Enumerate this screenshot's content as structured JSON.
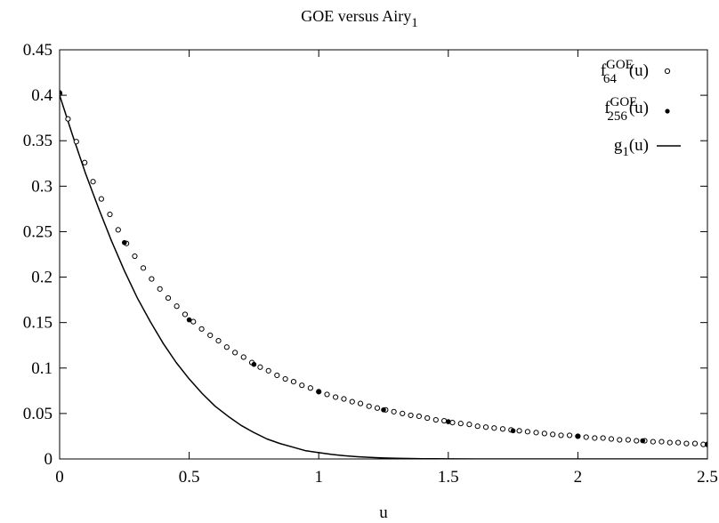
{
  "chart_data": {
    "type": "scatter",
    "title": {
      "main": "GOE versus Airy",
      "sub": "1"
    },
    "xlabel": "u",
    "ylabel": "",
    "xlim": [
      0,
      2.5
    ],
    "ylim": [
      0,
      0.45
    ],
    "xticks": [
      "0",
      "0.5",
      "1",
      "1.5",
      "2",
      "2.5"
    ],
    "yticks": [
      "0",
      "0.05",
      "0.1",
      "0.15",
      "0.2",
      "0.25",
      "0.3",
      "0.35",
      "0.4",
      "0.45"
    ],
    "grid": false,
    "legend_position": "top-right",
    "series": [
      {
        "label": {
          "base": "f",
          "sup": "GOE",
          "sub": "64",
          "arg": "(u)"
        },
        "marker": "open-circle",
        "x": [
          0,
          0.0323,
          0.0645,
          0.0968,
          0.129,
          0.161,
          0.194,
          0.226,
          0.258,
          0.29,
          0.323,
          0.355,
          0.387,
          0.419,
          0.452,
          0.484,
          0.516,
          0.548,
          0.581,
          0.613,
          0.645,
          0.677,
          0.71,
          0.742,
          0.774,
          0.806,
          0.839,
          0.871,
          0.903,
          0.935,
          0.968,
          1.0,
          1.032,
          1.065,
          1.097,
          1.129,
          1.161,
          1.194,
          1.226,
          1.258,
          1.29,
          1.323,
          1.355,
          1.387,
          1.419,
          1.452,
          1.484,
          1.516,
          1.548,
          1.581,
          1.613,
          1.645,
          1.677,
          1.71,
          1.742,
          1.774,
          1.806,
          1.839,
          1.871,
          1.903,
          1.935,
          1.968,
          2.0,
          2.032,
          2.065,
          2.097,
          2.129,
          2.161,
          2.194,
          2.226,
          2.258,
          2.29,
          2.323,
          2.355,
          2.387,
          2.419,
          2.452,
          2.484,
          2.5
        ],
        "y": [
          0.402,
          0.374,
          0.349,
          0.326,
          0.305,
          0.286,
          0.269,
          0.252,
          0.237,
          0.223,
          0.21,
          0.198,
          0.187,
          0.177,
          0.168,
          0.159,
          0.151,
          0.143,
          0.136,
          0.13,
          0.123,
          0.117,
          0.112,
          0.106,
          0.101,
          0.097,
          0.092,
          0.088,
          0.085,
          0.081,
          0.078,
          0.074,
          0.071,
          0.068,
          0.066,
          0.063,
          0.061,
          0.058,
          0.056,
          0.054,
          0.052,
          0.05,
          0.048,
          0.047,
          0.045,
          0.043,
          0.042,
          0.04,
          0.039,
          0.038,
          0.036,
          0.035,
          0.034,
          0.033,
          0.032,
          0.031,
          0.03,
          0.029,
          0.028,
          0.027,
          0.026,
          0.026,
          0.025,
          0.024,
          0.023,
          0.023,
          0.022,
          0.021,
          0.021,
          0.02,
          0.02,
          0.019,
          0.019,
          0.018,
          0.018,
          0.017,
          0.017,
          0.016,
          0.016
        ]
      },
      {
        "label": {
          "base": "f",
          "sup": "GOE",
          "sub": "256",
          "arg": "(u)"
        },
        "marker": "filled-dot",
        "x": [
          0,
          0.25,
          0.5,
          0.75,
          1.0,
          1.25,
          1.5,
          1.75,
          2.0,
          2.25,
          2.5
        ],
        "y": [
          0.403,
          0.238,
          0.153,
          0.104,
          0.074,
          0.054,
          0.041,
          0.031,
          0.025,
          0.02,
          0.016
        ]
      },
      {
        "label": {
          "base": "g",
          "sup": "",
          "sub": "1",
          "arg": "(u)"
        },
        "marker": "line",
        "x": [
          0,
          0.05,
          0.1,
          0.15,
          0.2,
          0.25,
          0.3,
          0.35,
          0.4,
          0.45,
          0.5,
          0.55,
          0.6,
          0.65,
          0.7,
          0.75,
          0.8,
          0.85,
          0.9,
          0.95,
          1.0,
          1.05,
          1.1,
          1.15,
          1.2,
          1.25,
          1.3,
          1.35,
          1.4,
          1.45,
          1.5,
          1.6,
          1.7,
          1.8,
          1.9,
          2.0,
          2.25,
          2.5
        ],
        "y": [
          0.4,
          0.356,
          0.314,
          0.276,
          0.24,
          0.207,
          0.177,
          0.151,
          0.127,
          0.106,
          0.088,
          0.072,
          0.058,
          0.047,
          0.037,
          0.029,
          0.022,
          0.017,
          0.013,
          0.009,
          0.007,
          0.005,
          0.0035,
          0.0025,
          0.0017,
          0.0011,
          0.0007,
          0.0005,
          0.0003,
          0.0002,
          0.0001,
          4e-05,
          2e-05,
          1e-05,
          0,
          0,
          0,
          0
        ]
      }
    ]
  }
}
